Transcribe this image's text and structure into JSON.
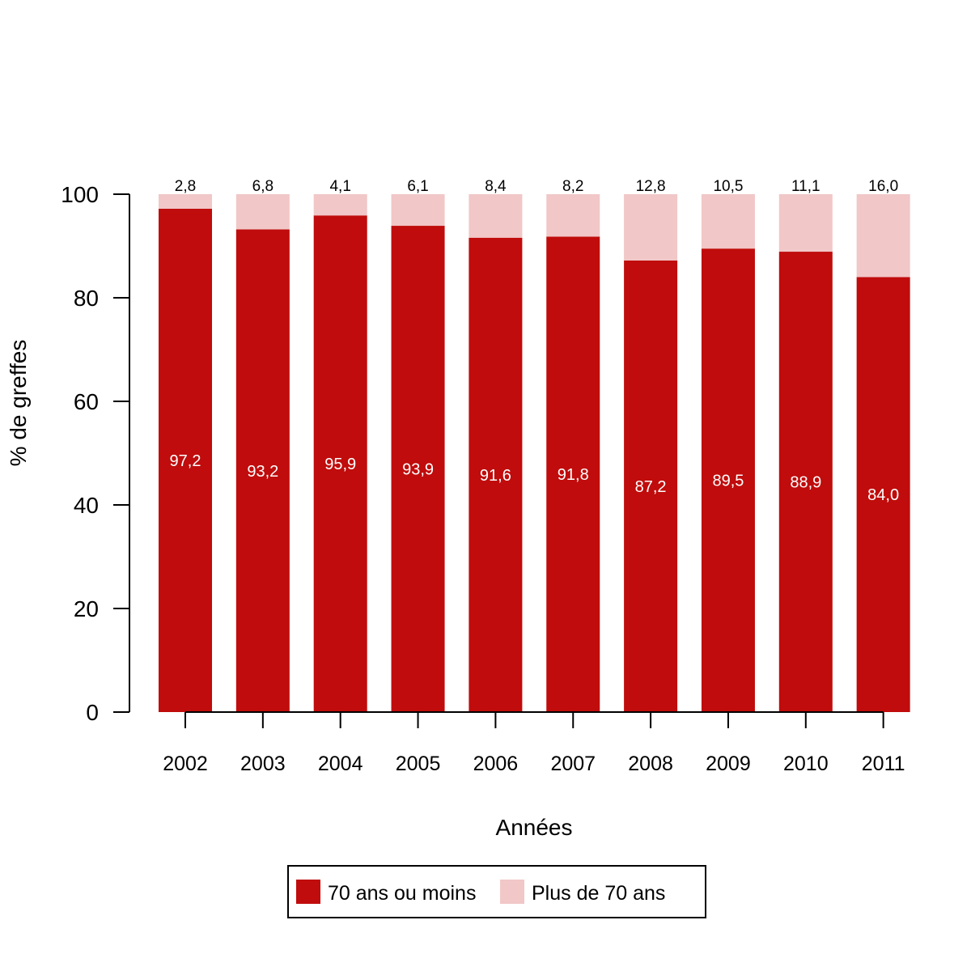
{
  "chart_data": {
    "type": "bar",
    "stacked": true,
    "categories": [
      "2002",
      "2003",
      "2004",
      "2005",
      "2006",
      "2007",
      "2008",
      "2009",
      "2010",
      "2011"
    ],
    "series": [
      {
        "name": "70 ans ou moins",
        "color": "#C00C0C",
        "values": [
          97.2,
          93.2,
          95.9,
          93.9,
          91.6,
          91.8,
          87.2,
          89.5,
          88.9,
          84.0
        ],
        "labels": [
          "97,2",
          "93,2",
          "95,9",
          "93,9",
          "91,6",
          "91,8",
          "87,2",
          "89,5",
          "88,9",
          "84,0"
        ]
      },
      {
        "name": "Plus de 70 ans",
        "color": "#F1C7C7",
        "values": [
          2.8,
          6.8,
          4.1,
          6.1,
          8.4,
          8.2,
          12.8,
          10.5,
          11.1,
          16.0
        ],
        "labels": [
          "2,8",
          "6,8",
          "4,1",
          "6,1",
          "8,4",
          "8,2",
          "12,8",
          "10,5",
          "11,1",
          "16,0"
        ]
      }
    ],
    "xlabel": "Années",
    "ylabel": "% de greffes",
    "ylim": [
      0,
      100
    ],
    "yticks": [
      0,
      20,
      40,
      60,
      80,
      100
    ],
    "grid": false,
    "legend_position": "bottom-center"
  }
}
